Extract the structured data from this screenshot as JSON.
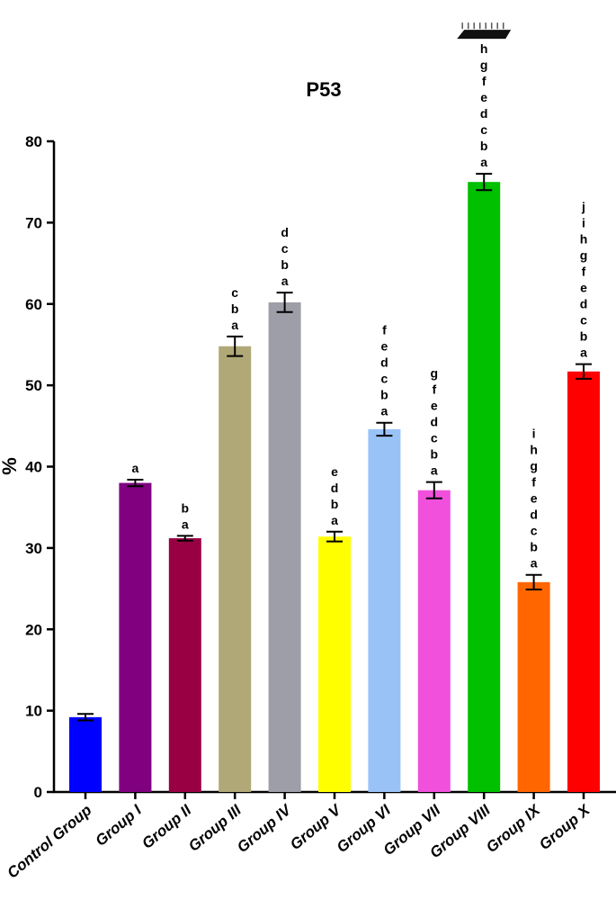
{
  "chart_data": {
    "type": "bar",
    "title": "P53",
    "ylabel": "%",
    "xlabel": "",
    "ylim": [
      0,
      80
    ],
    "yticks": [
      0,
      10,
      20,
      30,
      40,
      50,
      60,
      70,
      80
    ],
    "categories": [
      "Control Group",
      "Group I",
      "Group II",
      "Group III",
      "Group IV",
      "Group V",
      "Group VI",
      "Group VII",
      "Group VIII",
      "Group IX",
      "Group X"
    ],
    "values": [
      9.2,
      38.0,
      31.2,
      54.8,
      60.2,
      31.4,
      44.6,
      37.1,
      75.0,
      25.8,
      51.7
    ],
    "errors": [
      0.4,
      0.4,
      0.3,
      1.2,
      1.2,
      0.6,
      0.8,
      1.0,
      1.0,
      0.9,
      0.9
    ],
    "colors": [
      "#0000ff",
      "#800080",
      "#990044",
      "#b0a877",
      "#9e9ea8",
      "#ffff00",
      "#99c2f7",
      "#f050dc",
      "#00c000",
      "#ff6600",
      "#ff0000"
    ],
    "significance_letters": [
      [],
      [
        "a"
      ],
      [
        "b",
        "a"
      ],
      [
        "c",
        "b",
        "a"
      ],
      [
        "d",
        "c",
        "b",
        "a"
      ],
      [
        "e",
        "d",
        "b",
        "a"
      ],
      [
        "f",
        "e",
        "d",
        "c",
        "b",
        "a"
      ],
      [
        "g",
        "f",
        "e",
        "d",
        "c",
        "b",
        "a"
      ],
      [
        "h",
        "g",
        "f",
        "e",
        "d",
        "c",
        "b",
        "a"
      ],
      [
        "i",
        "h",
        "g",
        "f",
        "e",
        "d",
        "c",
        "b",
        "a"
      ],
      [
        "j",
        "i",
        "h",
        "g",
        "f",
        "e",
        "d",
        "c",
        "b",
        "a"
      ]
    ],
    "grid": false,
    "legend": "none"
  }
}
